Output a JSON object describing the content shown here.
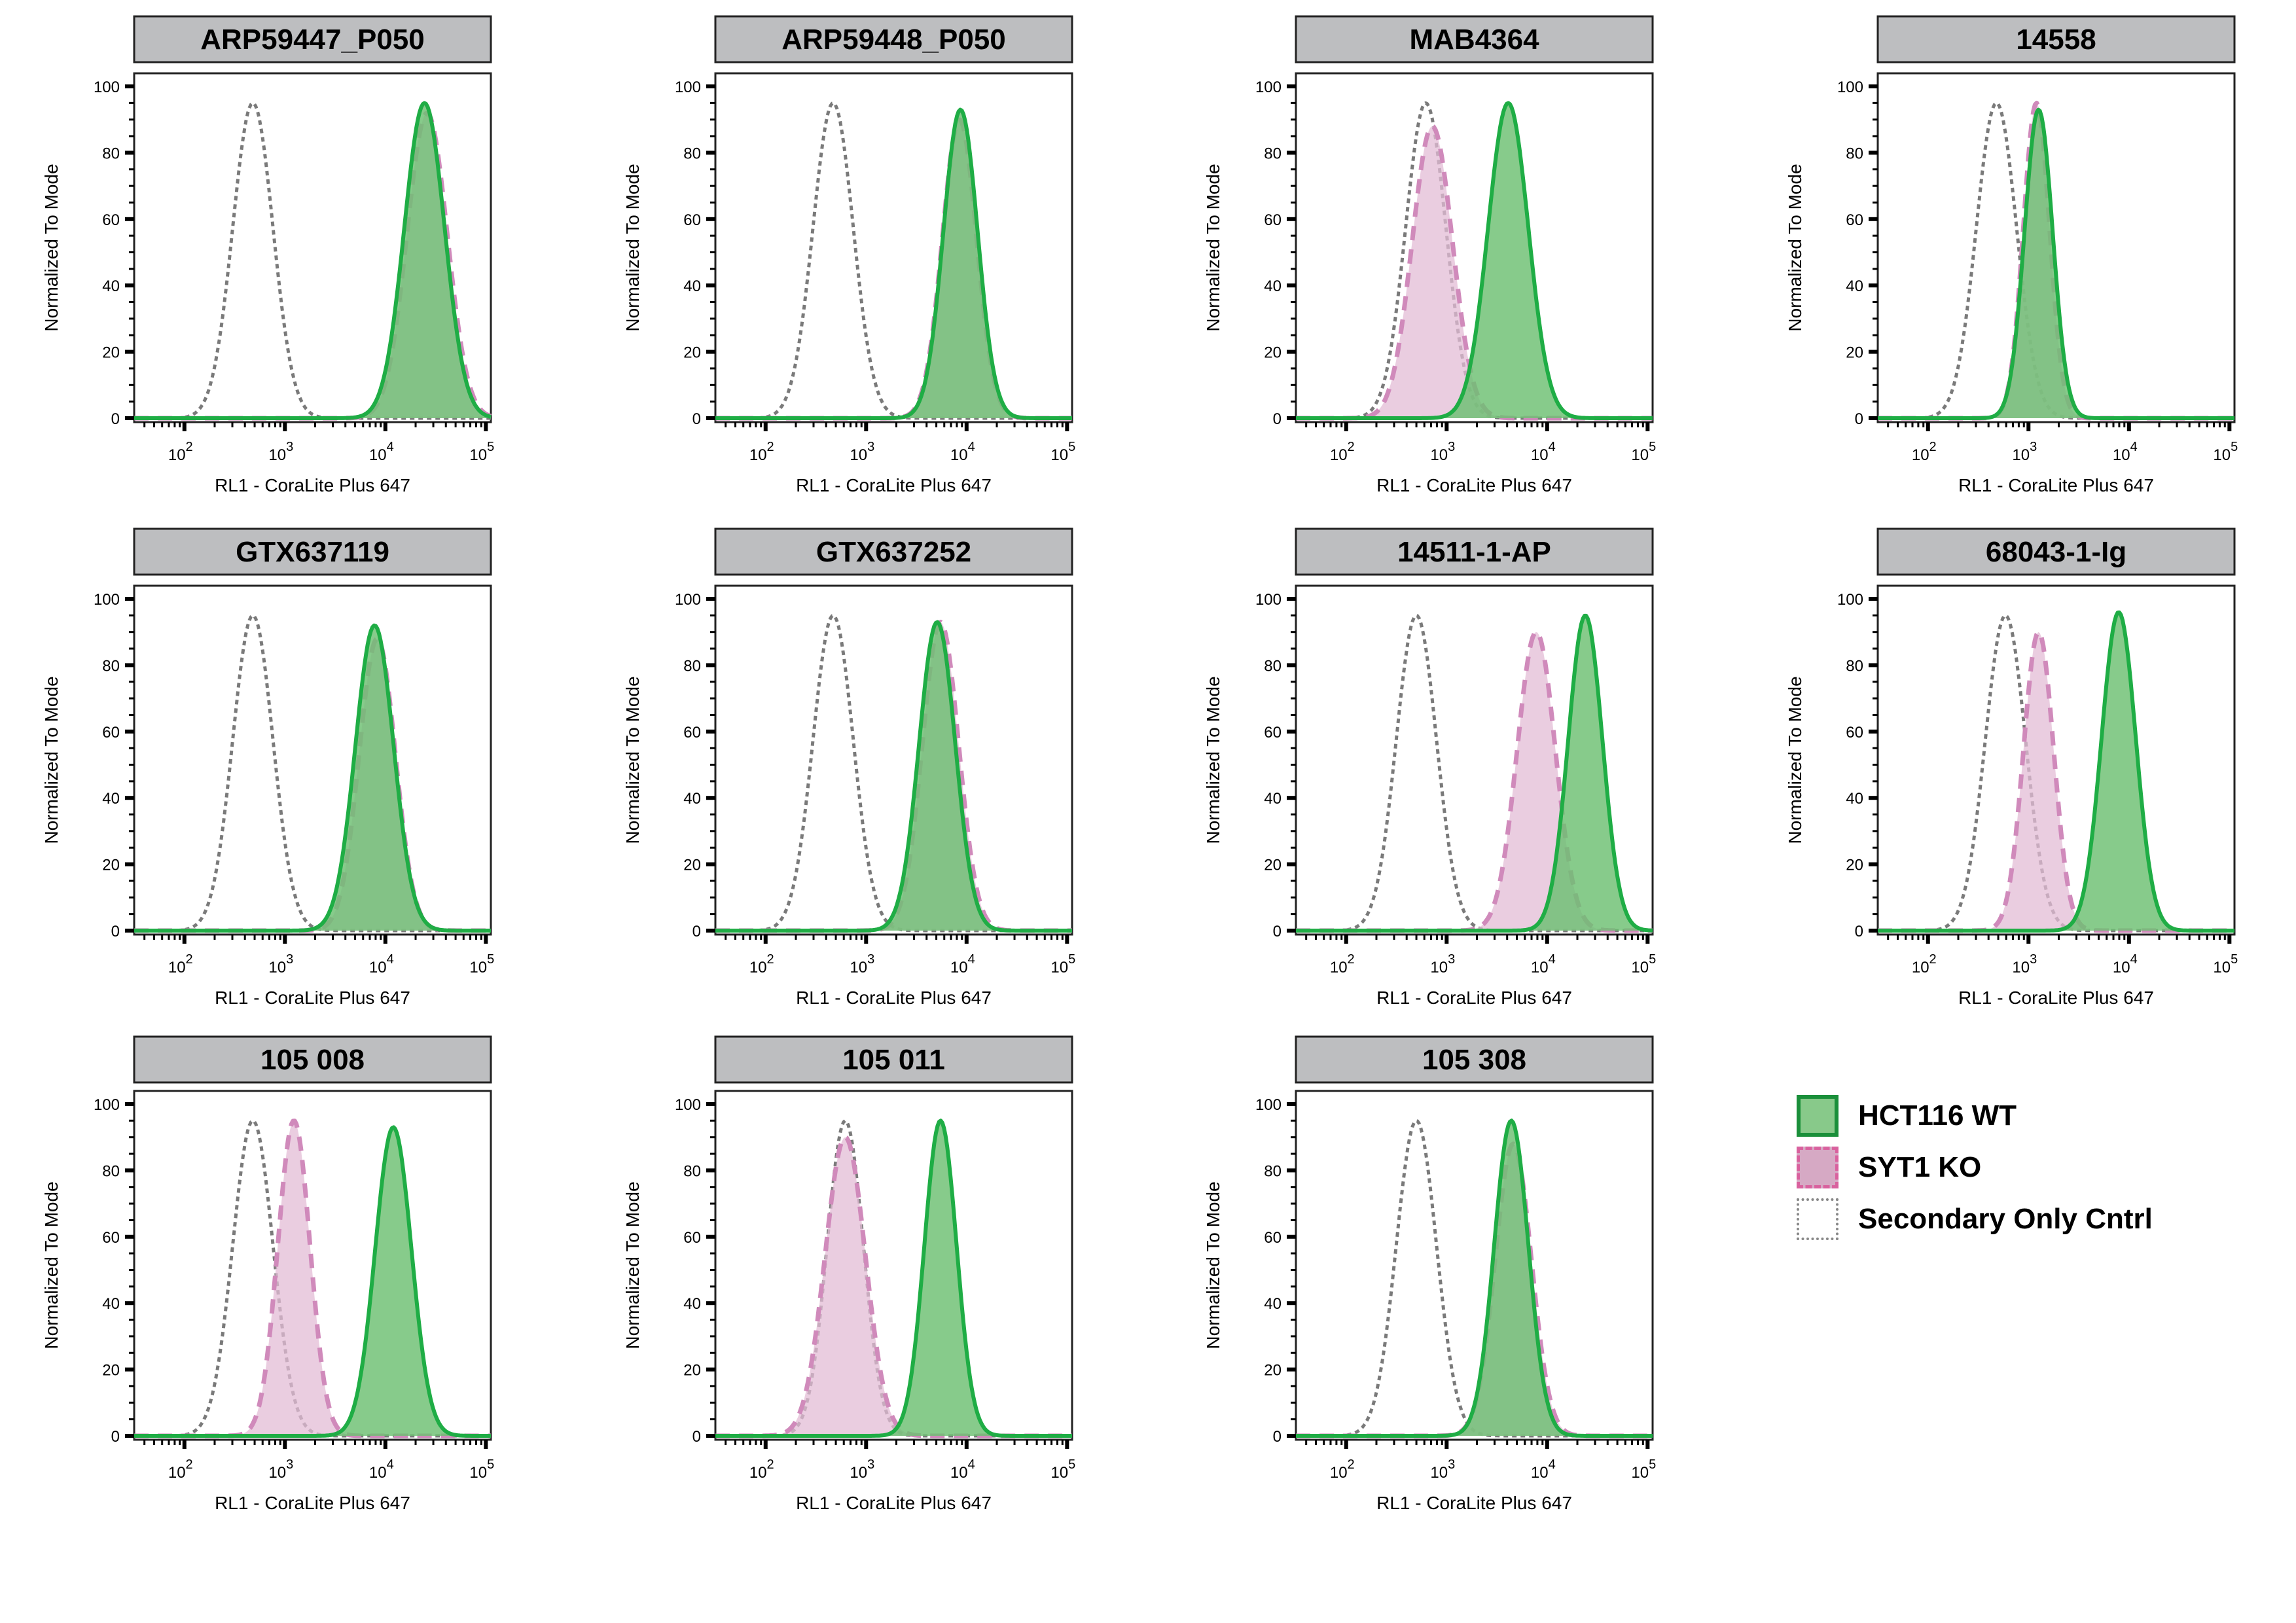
{
  "chart_data": {
    "type": "area",
    "xlabel": "RL1 - CoraLite Plus 647",
    "ylabel": "Normalized To Mode",
    "x_scale": "log",
    "xlim_log10": [
      1.5,
      5.05
    ],
    "ylim": [
      0,
      100
    ],
    "y_ticks": [
      0,
      20,
      40,
      60,
      80,
      100
    ],
    "x_ticks": [
      {
        "base": "10",
        "exp": "2",
        "log10": 2
      },
      {
        "base": "10",
        "exp": "3",
        "log10": 3
      },
      {
        "base": "10",
        "exp": "4",
        "log10": 4
      },
      {
        "base": "10",
        "exp": "5",
        "log10": 5
      }
    ],
    "legend": {
      "placement": "bottom-right",
      "entries": [
        {
          "name": "HCT116 WT",
          "fill": "#88c98a",
          "stroke": "#1fad45",
          "style": "solid"
        },
        {
          "name": "SYT1 KO",
          "fill": "#d6a9c4",
          "stroke": "#d9619e",
          "style": "dashed"
        },
        {
          "name": "Secondary Only Cntrl",
          "fill": "none",
          "stroke": "#888888",
          "style": "dotted"
        }
      ]
    },
    "panels": [
      {
        "title": "ARP59447_P050",
        "series": [
          {
            "name": "Secondary Only Cntrl",
            "peak_x": 480,
            "peak_y": 95,
            "spread_decades": 0.2
          },
          {
            "name": "SYT1 KO",
            "peak_x": 26000,
            "peak_y": 92,
            "spread_decades": 0.2
          },
          {
            "name": "HCT116 WT",
            "peak_x": 24500,
            "peak_y": 95,
            "spread_decades": 0.2
          }
        ]
      },
      {
        "title": "ARP59448_P050",
        "series": [
          {
            "name": "Secondary Only Cntrl",
            "peak_x": 470,
            "peak_y": 95,
            "spread_decades": 0.2
          },
          {
            "name": "SYT1 KO",
            "peak_x": 8500,
            "peak_y": 90,
            "spread_decades": 0.17
          },
          {
            "name": "HCT116 WT",
            "peak_x": 8700,
            "peak_y": 93,
            "spread_decades": 0.17
          }
        ]
      },
      {
        "title": "MAB4364",
        "series": [
          {
            "name": "Secondary Only Cntrl",
            "peak_x": 620,
            "peak_y": 95,
            "spread_decades": 0.2
          },
          {
            "name": "SYT1 KO",
            "peak_x": 720,
            "peak_y": 88,
            "spread_decades": 0.2
          },
          {
            "name": "HCT116 WT",
            "peak_x": 4100,
            "peak_y": 95,
            "spread_decades": 0.2
          }
        ]
      },
      {
        "title": "14558",
        "series": [
          {
            "name": "Secondary Only Cntrl",
            "peak_x": 480,
            "peak_y": 95,
            "spread_decades": 0.2
          },
          {
            "name": "SYT1 KO",
            "peak_x": 1200,
            "peak_y": 95,
            "spread_decades": 0.13
          },
          {
            "name": "HCT116 WT",
            "peak_x": 1260,
            "peak_y": 93,
            "spread_decades": 0.14
          }
        ]
      },
      {
        "title": "GTX637119",
        "series": [
          {
            "name": "Secondary Only Cntrl",
            "peak_x": 480,
            "peak_y": 95,
            "spread_decades": 0.2
          },
          {
            "name": "SYT1 KO",
            "peak_x": 8300,
            "peak_y": 88,
            "spread_decades": 0.18
          },
          {
            "name": "HCT116 WT",
            "peak_x": 7800,
            "peak_y": 92,
            "spread_decades": 0.19
          }
        ]
      },
      {
        "title": "GTX637252",
        "series": [
          {
            "name": "Secondary Only Cntrl",
            "peak_x": 470,
            "peak_y": 95,
            "spread_decades": 0.2
          },
          {
            "name": "SYT1 KO",
            "peak_x": 5500,
            "peak_y": 93,
            "spread_decades": 0.18
          },
          {
            "name": "HCT116 WT",
            "peak_x": 5100,
            "peak_y": 93,
            "spread_decades": 0.18
          }
        ]
      },
      {
        "title": "14511-1-AP",
        "series": [
          {
            "name": "Secondary Only Cntrl",
            "peak_x": 500,
            "peak_y": 95,
            "spread_decades": 0.2
          },
          {
            "name": "SYT1 KO",
            "peak_x": 7800,
            "peak_y": 90,
            "spread_decades": 0.19
          },
          {
            "name": "HCT116 WT",
            "peak_x": 24000,
            "peak_y": 95,
            "spread_decades": 0.17
          }
        ]
      },
      {
        "title": "68043-1-Ig",
        "series": [
          {
            "name": "Secondary Only Cntrl",
            "peak_x": 590,
            "peak_y": 95,
            "spread_decades": 0.2
          },
          {
            "name": "SYT1 KO",
            "peak_x": 1260,
            "peak_y": 90,
            "spread_decades": 0.15
          },
          {
            "name": "HCT116 WT",
            "peak_x": 7900,
            "peak_y": 96,
            "spread_decades": 0.17
          }
        ]
      },
      {
        "title": "105 008",
        "series": [
          {
            "name": "Secondary Only Cntrl",
            "peak_x": 480,
            "peak_y": 95,
            "spread_decades": 0.2
          },
          {
            "name": "SYT1 KO",
            "peak_x": 1230,
            "peak_y": 95,
            "spread_decades": 0.16
          },
          {
            "name": "HCT116 WT",
            "peak_x": 12000,
            "peak_y": 93,
            "spread_decades": 0.18
          }
        ]
      },
      {
        "title": "105 011",
        "series": [
          {
            "name": "Secondary Only Cntrl",
            "peak_x": 620,
            "peak_y": 95,
            "spread_decades": 0.18
          },
          {
            "name": "SYT1 KO",
            "peak_x": 620,
            "peak_y": 90,
            "spread_decades": 0.2
          },
          {
            "name": "HCT116 WT",
            "peak_x": 5500,
            "peak_y": 95,
            "spread_decades": 0.16
          }
        ]
      },
      {
        "title": "105 308",
        "series": [
          {
            "name": "Secondary Only Cntrl",
            "peak_x": 500,
            "peak_y": 95,
            "spread_decades": 0.2
          },
          {
            "name": "SYT1 KO",
            "peak_x": 4600,
            "peak_y": 88,
            "spread_decades": 0.18
          },
          {
            "name": "HCT116 WT",
            "peak_x": 4400,
            "peak_y": 95,
            "spread_decades": 0.17
          }
        ]
      }
    ]
  }
}
